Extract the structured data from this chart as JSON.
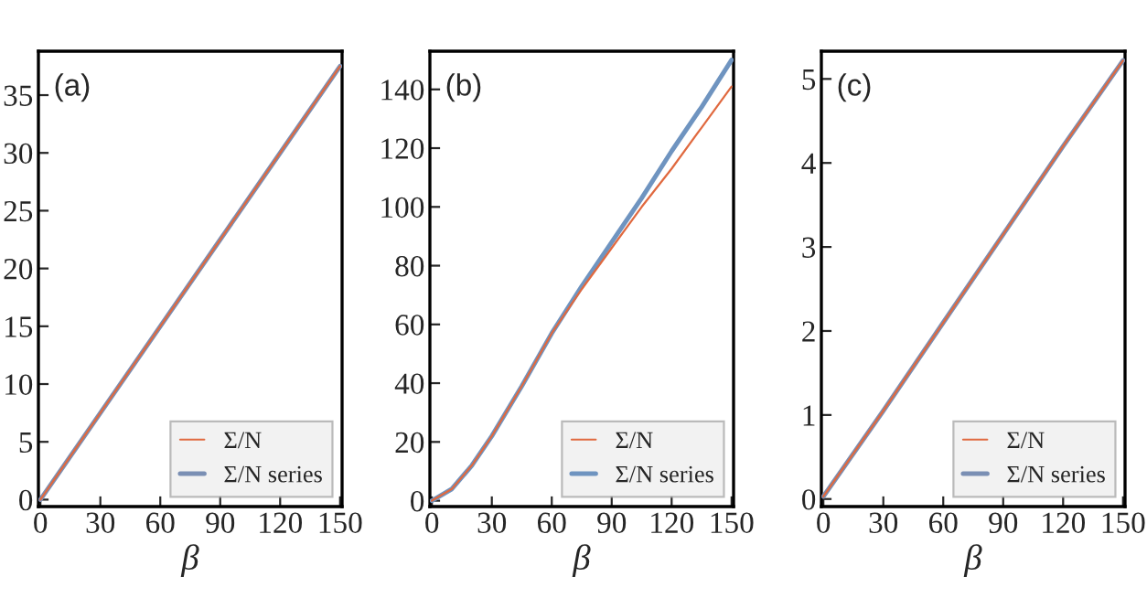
{
  "chart_data": [
    {
      "type": "line",
      "xlabel": "β",
      "annotations": [
        "(a)"
      ],
      "legend": "bottom right",
      "grid": false,
      "x": [
        0,
        30,
        60,
        90,
        120,
        150
      ],
      "xlim": [
        -1,
        151
      ],
      "xticks": [
        0,
        30,
        60,
        90,
        120,
        150
      ],
      "ylim": [
        -0.6,
        38.8
      ],
      "yticks": [
        0,
        5,
        10,
        15,
        20,
        25,
        30,
        35
      ],
      "series": [
        {
          "name": "Σ/N",
          "color": "#e0693f",
          "values": [
            0,
            7.5,
            15,
            22.5,
            30,
            37.5
          ]
        },
        {
          "name": "Σ/N series",
          "color": "#7a8fb4",
          "values": [
            0,
            7.5,
            15,
            22.5,
            30,
            37.5
          ]
        }
      ]
    },
    {
      "type": "line",
      "xlabel": "β",
      "annotations": [
        "(b)"
      ],
      "legend": "bottom right",
      "grid": false,
      "x": [
        0,
        10,
        20,
        30,
        45,
        60,
        75,
        90,
        105,
        120,
        135,
        150
      ],
      "xlim": [
        -1,
        151
      ],
      "xticks": [
        0,
        30,
        60,
        90,
        120,
        150
      ],
      "ylim": [
        -2,
        153
      ],
      "yticks": [
        0,
        20,
        40,
        60,
        80,
        100,
        120,
        140
      ],
      "series": [
        {
          "name": "Σ/N",
          "color": "#e0693f",
          "values": [
            0,
            4,
            12,
            22,
            39,
            57,
            72,
            86,
            100,
            113,
            127,
            141
          ]
        },
        {
          "name": "Σ/N series",
          "color": "#6f94c0",
          "values": [
            0,
            4,
            12,
            22,
            39,
            57,
            73,
            88,
            103,
            119,
            134,
            150
          ]
        }
      ]
    },
    {
      "type": "line",
      "xlabel": "β",
      "annotations": [
        "(c)"
      ],
      "legend": "bottom right",
      "grid": false,
      "x": [
        0,
        30,
        60,
        90,
        120,
        150
      ],
      "xlim": [
        -1,
        151
      ],
      "xticks": [
        0,
        30,
        60,
        90,
        120,
        150
      ],
      "ylim": [
        -0.09,
        5.33
      ],
      "yticks": [
        0,
        1,
        2,
        3,
        4,
        5
      ],
      "series": [
        {
          "name": "Σ/N",
          "color": "#e0693f",
          "values": [
            0.03,
            1.05,
            2.1,
            3.15,
            4.2,
            5.22
          ]
        },
        {
          "name": "Σ/N series",
          "color": "#7a8fb4",
          "values": [
            0.03,
            1.05,
            2.1,
            3.15,
            4.2,
            5.22
          ]
        }
      ]
    }
  ]
}
